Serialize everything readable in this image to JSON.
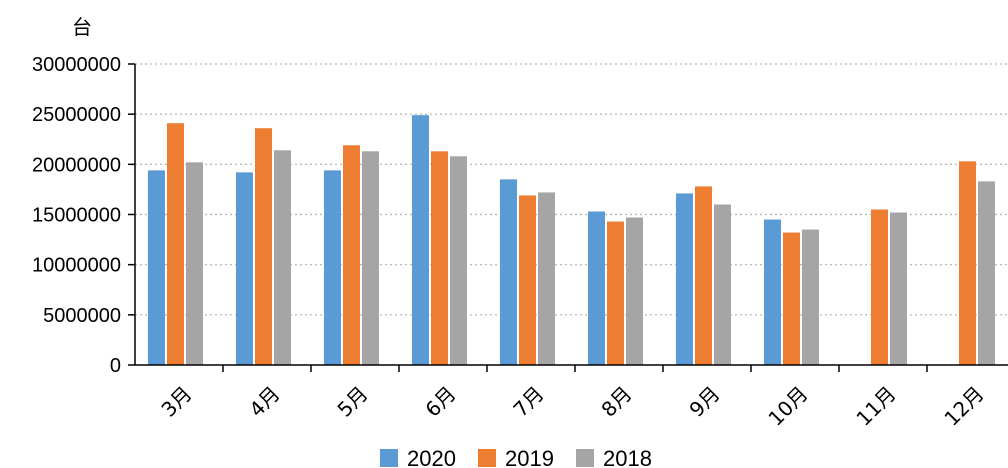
{
  "chart_data": {
    "type": "bar",
    "title": "",
    "ylabel": "台",
    "xlabel": "",
    "categories": [
      "3月",
      "4月",
      "5月",
      "6月",
      "7月",
      "8月",
      "9月",
      "10月",
      "11月",
      "12月"
    ],
    "series": [
      {
        "name": "2020",
        "color": "#5B9BD5",
        "values": [
          19400000,
          19200000,
          19400000,
          24900000,
          18500000,
          15300000,
          17100000,
          14500000,
          null,
          null
        ]
      },
      {
        "name": "2019",
        "color": "#ED7D31",
        "values": [
          24100000,
          23600000,
          21900000,
          21300000,
          16900000,
          14300000,
          17800000,
          13200000,
          15500000,
          20300000
        ]
      },
      {
        "name": "2018",
        "color": "#A5A5A5",
        "values": [
          20200000,
          21400000,
          21300000,
          20800000,
          17200000,
          14700000,
          16000000,
          13500000,
          15200000,
          18300000
        ]
      }
    ],
    "ylim": [
      0,
      30000000
    ],
    "yticks": [
      "0",
      "5000000",
      "10000000",
      "15000000",
      "20000000",
      "25000000",
      "30000000"
    ],
    "grid": true,
    "legend_position": "bottom"
  }
}
